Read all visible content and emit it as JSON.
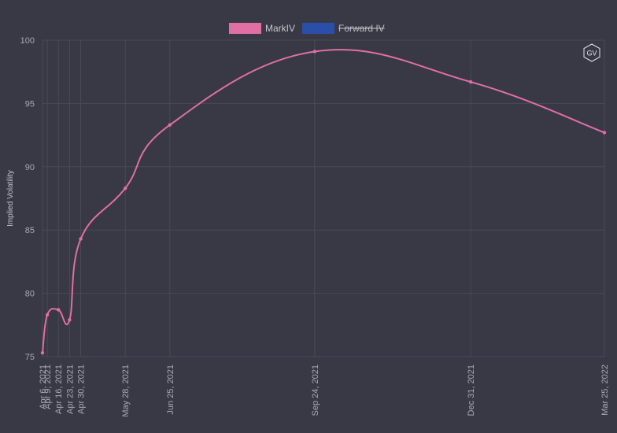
{
  "chart_data": {
    "type": "line",
    "ylabel": "Implied Volatility",
    "ylim": [
      75,
      100
    ],
    "yticks": [
      75,
      80,
      85,
      90,
      95,
      100
    ],
    "xlim": [
      "2021-04-06",
      "2022-03-25"
    ],
    "grid": true,
    "legend_position": "top-center",
    "series": [
      {
        "name": "MarkIV",
        "color": "#e06fa4",
        "hidden": false,
        "x": [
          "2021-04-06",
          "2021-04-09",
          "2021-04-16",
          "2021-04-23",
          "2021-04-30",
          "2021-05-28",
          "2021-06-25",
          "2021-09-24",
          "2021-12-31",
          "2022-03-25"
        ],
        "labels": [
          "Apr 6, 2021",
          "Apr 9, 2021",
          "Apr 16, 2021",
          "Apr 23, 2021",
          "Apr 30, 2021",
          "May 28, 2021",
          "Jun 25, 2021",
          "Sep 24, 2021",
          "Dec 31, 2021",
          "Mar 25, 2022"
        ],
        "values": [
          75.3,
          78.3,
          78.7,
          77.9,
          84.3,
          88.3,
          93.3,
          99.1,
          96.7,
          92.7
        ]
      },
      {
        "name": "Forward IV",
        "color": "#2a4fa8",
        "hidden": true,
        "x": [],
        "values": []
      }
    ]
  },
  "badge": {
    "text": "GV",
    "icon": "gv-hexagon-logo-icon"
  },
  "colors": {
    "background": "#393845",
    "grid": "#4a4956",
    "axis_text": "#a9a9b3"
  }
}
